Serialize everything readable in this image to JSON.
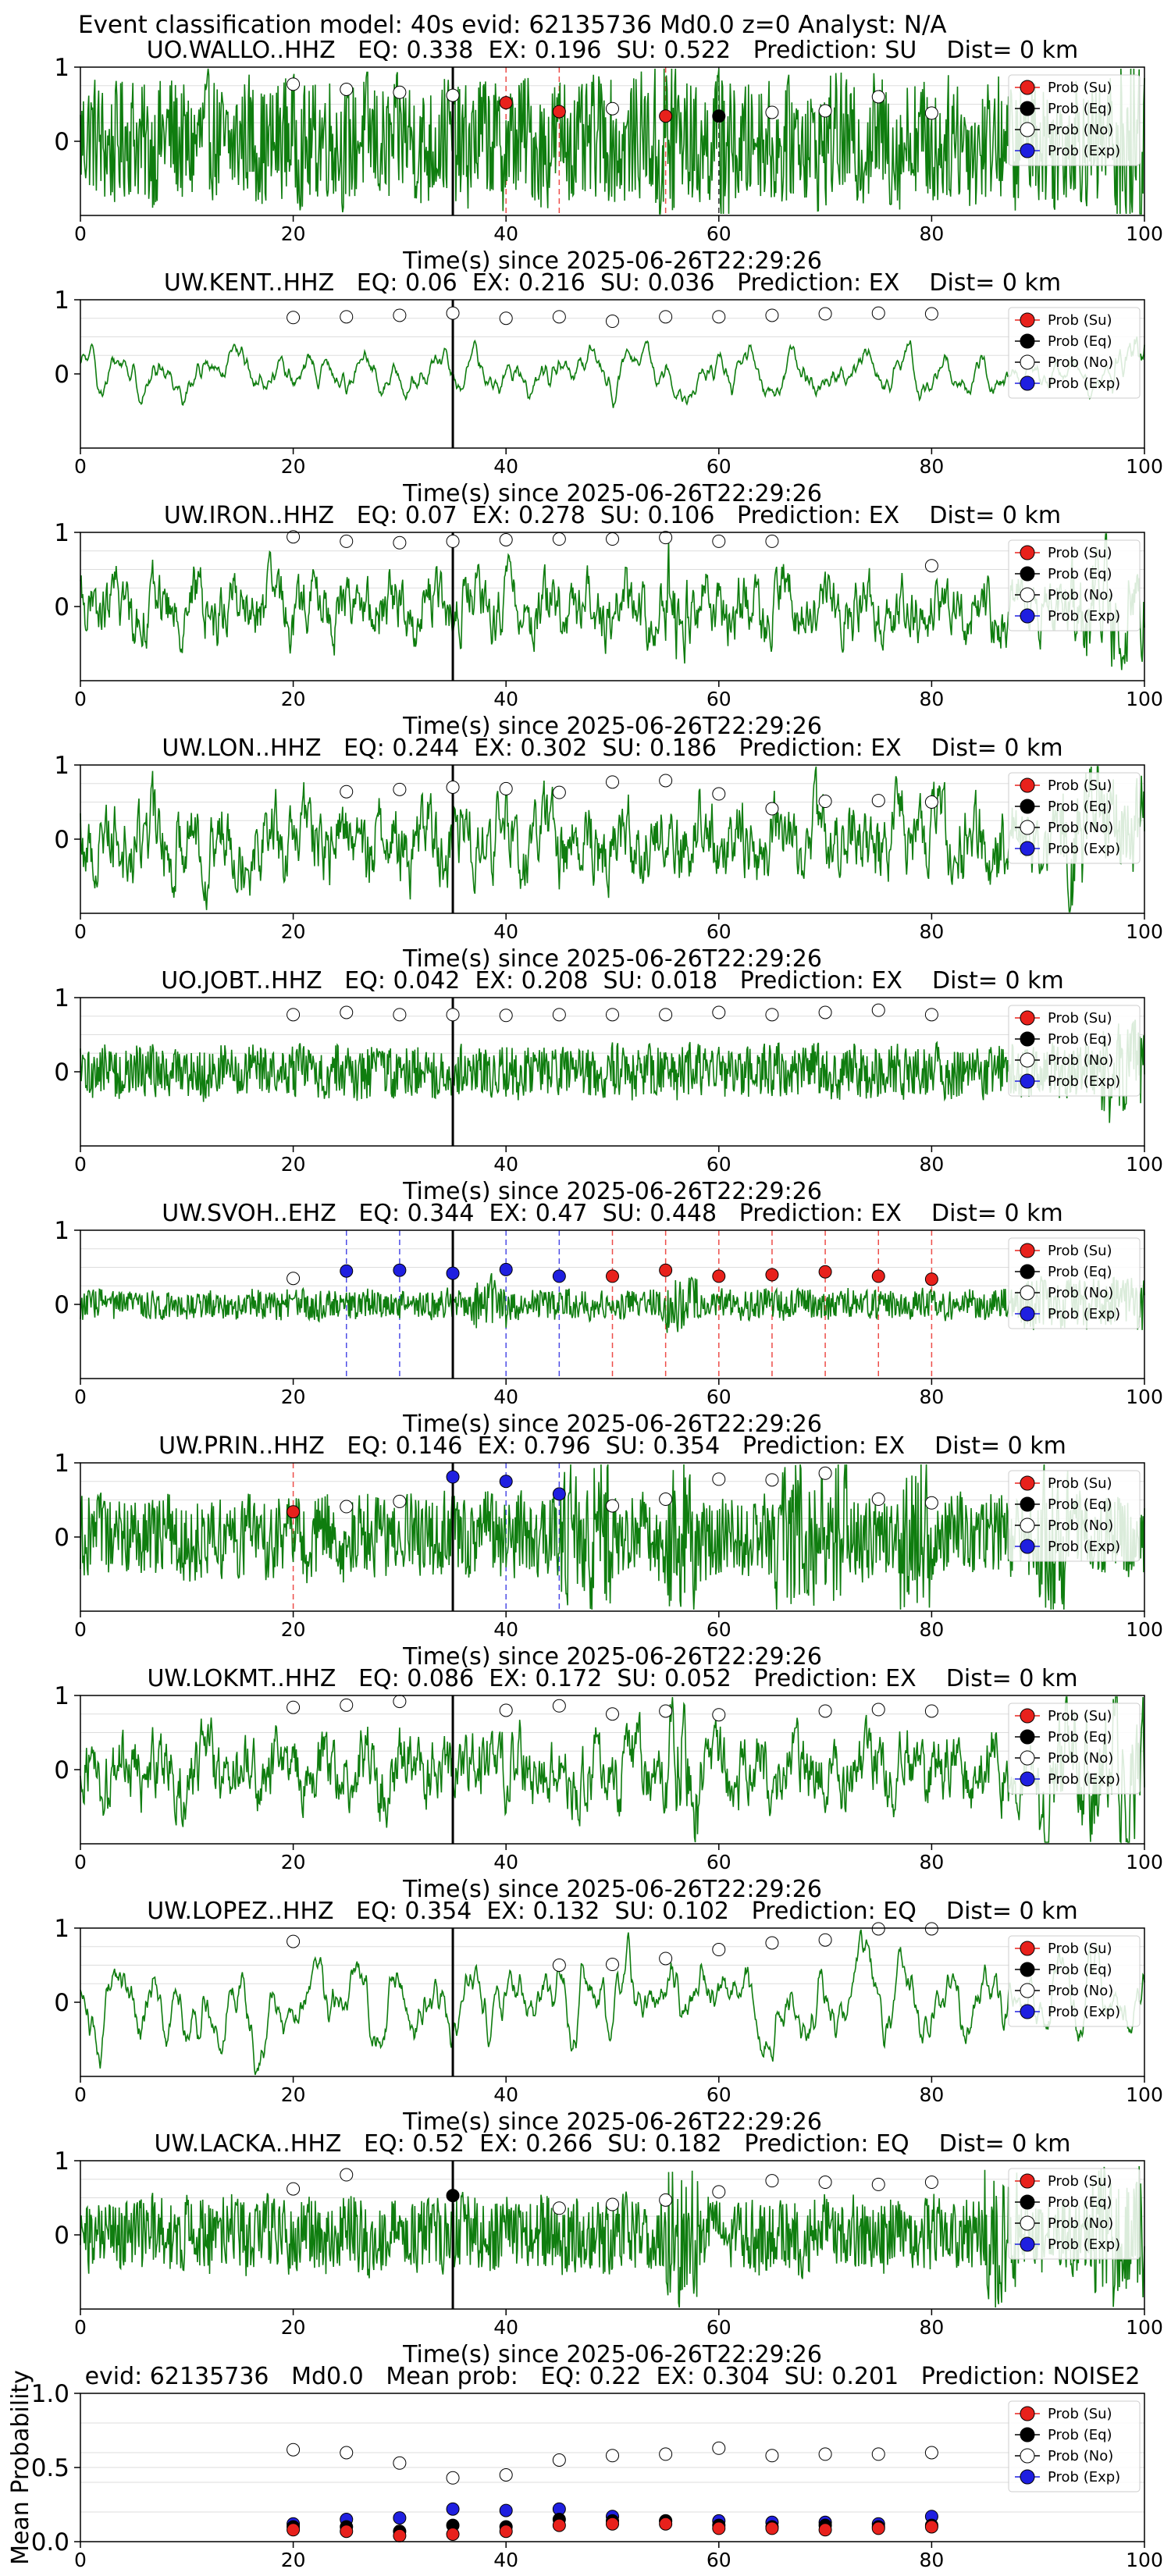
{
  "figure": {
    "suptitle": "Event classification model: 40s evid: 62135736 Md0.0 z=0 Analyst: N/A"
  },
  "legend_entries": [
    "Prob (Su)",
    "Prob (Eq)",
    "Prob (No)",
    "Prob (Exp)"
  ],
  "colors": {
    "su": "#e8211c",
    "eq": "#000000",
    "no": "#ffffff",
    "exp": "#1f1fe0",
    "waveform": "#0f7d0f",
    "pick_line": "#000000",
    "grid": "#dddddd"
  },
  "chart_data": [
    {
      "type": "line",
      "title": "UO.WALLO..HHZ   EQ: 0.338  EX: 0.196  SU: 0.522   Prediction: SU    Dist= 0 km",
      "xlabel": "Time(s) since 2025-06-26T22:29:26",
      "xlim": [
        0,
        100
      ],
      "ylim": [
        -1,
        1
      ],
      "xticks": [
        "0",
        "20",
        "40",
        "60",
        "80",
        "100"
      ],
      "yticks": [
        "0",
        "1"
      ],
      "pick_time": 35,
      "amplitude": 0.75,
      "style": "noisy",
      "bursts": [
        [
          54,
          56
        ],
        [
          60,
          61
        ],
        [
          97,
          100
        ]
      ],
      "points": [
        {
          "x": 20,
          "y": 0.77,
          "cls": "no"
        },
        {
          "x": 25,
          "y": 0.7,
          "cls": "no"
        },
        {
          "x": 30,
          "y": 0.66,
          "cls": "no"
        },
        {
          "x": 35,
          "y": 0.62,
          "cls": "no"
        },
        {
          "x": 40,
          "y": 0.52,
          "cls": "su"
        },
        {
          "x": 45,
          "y": 0.4,
          "cls": "su"
        },
        {
          "x": 50,
          "y": 0.44,
          "cls": "no"
        },
        {
          "x": 55,
          "y": 0.34,
          "cls": "su"
        },
        {
          "x": 60,
          "y": 0.34,
          "cls": "eq"
        },
        {
          "x": 65,
          "y": 0.39,
          "cls": "no"
        },
        {
          "x": 70,
          "y": 0.41,
          "cls": "no"
        },
        {
          "x": 75,
          "y": 0.6,
          "cls": "no"
        },
        {
          "x": 80,
          "y": 0.38,
          "cls": "no"
        }
      ]
    },
    {
      "type": "line",
      "title": "UW.KENT..HHZ   EQ: 0.06  EX: 0.216  SU: 0.036   Prediction: EX    Dist= 0 km",
      "xlabel": "Time(s) since 2025-06-26T22:29:26",
      "xlim": [
        0,
        100
      ],
      "ylim": [
        -1,
        1
      ],
      "xticks": [
        "0",
        "20",
        "40",
        "60",
        "80",
        "100"
      ],
      "yticks": [
        "0",
        "1"
      ],
      "pick_time": 35,
      "amplitude": 0.35,
      "style": "smooth",
      "bursts": [
        [
          97,
          100
        ]
      ],
      "points": [
        {
          "x": 20,
          "y": 0.76,
          "cls": "no"
        },
        {
          "x": 25,
          "y": 0.77,
          "cls": "no"
        },
        {
          "x": 30,
          "y": 0.79,
          "cls": "no"
        },
        {
          "x": 35,
          "y": 0.82,
          "cls": "no"
        },
        {
          "x": 40,
          "y": 0.75,
          "cls": "no"
        },
        {
          "x": 45,
          "y": 0.77,
          "cls": "no"
        },
        {
          "x": 50,
          "y": 0.71,
          "cls": "no"
        },
        {
          "x": 55,
          "y": 0.77,
          "cls": "no"
        },
        {
          "x": 60,
          "y": 0.77,
          "cls": "no"
        },
        {
          "x": 65,
          "y": 0.79,
          "cls": "no"
        },
        {
          "x": 70,
          "y": 0.81,
          "cls": "no"
        },
        {
          "x": 75,
          "y": 0.82,
          "cls": "no"
        },
        {
          "x": 80,
          "y": 0.81,
          "cls": "no"
        }
      ]
    },
    {
      "type": "line",
      "title": "UW.IRON..HHZ   EQ: 0.07  EX: 0.278  SU: 0.106   Prediction: EX    Dist= 0 km",
      "xlabel": "Time(s) since 2025-06-26T22:29:26",
      "xlim": [
        0,
        100
      ],
      "ylim": [
        -1,
        1
      ],
      "xticks": [
        "0",
        "20",
        "40",
        "60",
        "80",
        "100"
      ],
      "yticks": [
        "0",
        "1"
      ],
      "pick_time": 35,
      "amplitude": 0.45,
      "style": "medium",
      "bursts": [
        [
          55,
          57
        ],
        [
          93,
          100
        ]
      ],
      "points": [
        {
          "x": 20,
          "y": 0.94,
          "cls": "no"
        },
        {
          "x": 25,
          "y": 0.88,
          "cls": "no"
        },
        {
          "x": 30,
          "y": 0.86,
          "cls": "no"
        },
        {
          "x": 35,
          "y": 0.88,
          "cls": "no"
        },
        {
          "x": 40,
          "y": 0.9,
          "cls": "no"
        },
        {
          "x": 45,
          "y": 0.91,
          "cls": "no"
        },
        {
          "x": 50,
          "y": 0.91,
          "cls": "no"
        },
        {
          "x": 55,
          "y": 0.93,
          "cls": "no"
        },
        {
          "x": 60,
          "y": 0.88,
          "cls": "no"
        },
        {
          "x": 65,
          "y": 0.88,
          "cls": "no"
        },
        {
          "x": 80,
          "y": 0.55,
          "cls": "no"
        }
      ]
    },
    {
      "type": "line",
      "title": "UW.LON..HHZ   EQ: 0.244  EX: 0.302  SU: 0.186   Prediction: EX    Dist= 0 km",
      "xlabel": "Time(s) since 2025-06-26T22:29:26",
      "xlim": [
        0,
        100
      ],
      "ylim": [
        -1,
        1
      ],
      "xticks": [
        "0",
        "20",
        "40",
        "60",
        "80",
        "100"
      ],
      "yticks": [
        "0",
        "1"
      ],
      "pick_time": 35,
      "amplitude": 0.6,
      "style": "medium",
      "bursts": [
        [
          92,
          100
        ]
      ],
      "points": [
        {
          "x": 25,
          "y": 0.64,
          "cls": "no"
        },
        {
          "x": 30,
          "y": 0.67,
          "cls": "no"
        },
        {
          "x": 35,
          "y": 0.7,
          "cls": "no"
        },
        {
          "x": 40,
          "y": 0.68,
          "cls": "no"
        },
        {
          "x": 45,
          "y": 0.63,
          "cls": "no"
        },
        {
          "x": 50,
          "y": 0.77,
          "cls": "no"
        },
        {
          "x": 55,
          "y": 0.79,
          "cls": "no"
        },
        {
          "x": 60,
          "y": 0.61,
          "cls": "no"
        },
        {
          "x": 65,
          "y": 0.41,
          "cls": "no"
        },
        {
          "x": 70,
          "y": 0.51,
          "cls": "no"
        },
        {
          "x": 75,
          "y": 0.52,
          "cls": "no"
        },
        {
          "x": 80,
          "y": 0.5,
          "cls": "no"
        }
      ]
    },
    {
      "type": "line",
      "title": "UO.JOBT..HHZ   EQ: 0.042  EX: 0.208  SU: 0.018   Prediction: EX    Dist= 0 km",
      "xlabel": "Time(s) since 2025-06-26T22:29:26",
      "xlim": [
        0,
        100
      ],
      "ylim": [
        -1,
        1
      ],
      "xticks": [
        "0",
        "20",
        "40",
        "60",
        "80",
        "100"
      ],
      "yticks": [
        "0",
        "1"
      ],
      "pick_time": 35,
      "amplitude": 0.32,
      "style": "noisy",
      "bursts": [
        [
          96,
          100
        ]
      ],
      "points": [
        {
          "x": 20,
          "y": 0.77,
          "cls": "no"
        },
        {
          "x": 25,
          "y": 0.8,
          "cls": "no"
        },
        {
          "x": 30,
          "y": 0.77,
          "cls": "no"
        },
        {
          "x": 35,
          "y": 0.77,
          "cls": "no"
        },
        {
          "x": 40,
          "y": 0.76,
          "cls": "no"
        },
        {
          "x": 45,
          "y": 0.77,
          "cls": "no"
        },
        {
          "x": 50,
          "y": 0.77,
          "cls": "no"
        },
        {
          "x": 55,
          "y": 0.77,
          "cls": "no"
        },
        {
          "x": 60,
          "y": 0.8,
          "cls": "no"
        },
        {
          "x": 65,
          "y": 0.77,
          "cls": "no"
        },
        {
          "x": 70,
          "y": 0.8,
          "cls": "no"
        },
        {
          "x": 75,
          "y": 0.83,
          "cls": "no"
        },
        {
          "x": 80,
          "y": 0.77,
          "cls": "no"
        }
      ]
    },
    {
      "type": "line",
      "title": "UW.SVOH..EHZ   EQ: 0.344  EX: 0.47  SU: 0.448   Prediction: EX    Dist= 0 km",
      "xlabel": "Time(s) since 2025-06-26T22:29:26",
      "xlim": [
        0,
        100
      ],
      "ylim": [
        -1,
        1
      ],
      "xticks": [
        "0",
        "20",
        "40",
        "60",
        "80",
        "100"
      ],
      "yticks": [
        "0",
        "1"
      ],
      "pick_time": 35,
      "amplitude": 0.18,
      "style": "noisy",
      "bursts": [
        [
          37,
          40
        ],
        [
          55,
          58
        ],
        [
          88,
          100
        ]
      ],
      "points": [
        {
          "x": 20,
          "y": 0.35,
          "cls": "no"
        },
        {
          "x": 25,
          "y": 0.45,
          "cls": "exp"
        },
        {
          "x": 30,
          "y": 0.46,
          "cls": "exp"
        },
        {
          "x": 35,
          "y": 0.42,
          "cls": "exp"
        },
        {
          "x": 40,
          "y": 0.47,
          "cls": "exp"
        },
        {
          "x": 45,
          "y": 0.38,
          "cls": "exp"
        },
        {
          "x": 50,
          "y": 0.38,
          "cls": "su"
        },
        {
          "x": 55,
          "y": 0.46,
          "cls": "su"
        },
        {
          "x": 60,
          "y": 0.38,
          "cls": "su"
        },
        {
          "x": 65,
          "y": 0.4,
          "cls": "su"
        },
        {
          "x": 70,
          "y": 0.44,
          "cls": "su"
        },
        {
          "x": 75,
          "y": 0.38,
          "cls": "su"
        },
        {
          "x": 80,
          "y": 0.34,
          "cls": "su"
        }
      ]
    },
    {
      "type": "line",
      "title": "UW.PRIN..HHZ   EQ: 0.146  EX: 0.796  SU: 0.354   Prediction: EX    Dist= 0 km",
      "xlabel": "Time(s) since 2025-06-26T22:29:26",
      "xlim": [
        0,
        100
      ],
      "ylim": [
        -1,
        1
      ],
      "xticks": [
        "0",
        "20",
        "40",
        "60",
        "80",
        "100"
      ],
      "yticks": [
        "0",
        "1"
      ],
      "pick_time": 35,
      "amplitude": 0.5,
      "style": "noisy",
      "bursts": [
        [
          45,
          50
        ],
        [
          55,
          58
        ],
        [
          65,
          72
        ],
        [
          77,
          80
        ],
        [
          90,
          93
        ]
      ],
      "points": [
        {
          "x": 20,
          "y": 0.34,
          "cls": "su"
        },
        {
          "x": 25,
          "y": 0.41,
          "cls": "no"
        },
        {
          "x": 30,
          "y": 0.48,
          "cls": "no"
        },
        {
          "x": 35,
          "y": 0.81,
          "cls": "exp"
        },
        {
          "x": 40,
          "y": 0.75,
          "cls": "exp"
        },
        {
          "x": 45,
          "y": 0.58,
          "cls": "exp"
        },
        {
          "x": 50,
          "y": 0.42,
          "cls": "no"
        },
        {
          "x": 55,
          "y": 0.51,
          "cls": "no"
        },
        {
          "x": 60,
          "y": 0.78,
          "cls": "no"
        },
        {
          "x": 65,
          "y": 0.77,
          "cls": "no"
        },
        {
          "x": 70,
          "y": 0.86,
          "cls": "no"
        },
        {
          "x": 75,
          "y": 0.51,
          "cls": "no"
        },
        {
          "x": 80,
          "y": 0.46,
          "cls": "no"
        }
      ]
    },
    {
      "type": "line",
      "title": "UW.LOKMT..HHZ   EQ: 0.086  EX: 0.172  SU: 0.052   Prediction: EX    Dist= 0 km",
      "xlabel": "Time(s) since 2025-06-26T22:29:26",
      "xlim": [
        0,
        100
      ],
      "ylim": [
        -1,
        1
      ],
      "xticks": [
        "0",
        "20",
        "40",
        "60",
        "80",
        "100"
      ],
      "yticks": [
        "0",
        "1"
      ],
      "pick_time": 35,
      "amplitude": 0.55,
      "style": "medium",
      "bursts": [
        [
          55,
          58
        ],
        [
          90,
          100
        ]
      ],
      "points": [
        {
          "x": 20,
          "y": 0.84,
          "cls": "no"
        },
        {
          "x": 25,
          "y": 0.87,
          "cls": "no"
        },
        {
          "x": 30,
          "y": 0.92,
          "cls": "no"
        },
        {
          "x": 40,
          "y": 0.8,
          "cls": "no"
        },
        {
          "x": 45,
          "y": 0.86,
          "cls": "no"
        },
        {
          "x": 50,
          "y": 0.75,
          "cls": "no"
        },
        {
          "x": 55,
          "y": 0.79,
          "cls": "no"
        },
        {
          "x": 60,
          "y": 0.74,
          "cls": "no"
        },
        {
          "x": 70,
          "y": 0.79,
          "cls": "no"
        },
        {
          "x": 75,
          "y": 0.81,
          "cls": "no"
        },
        {
          "x": 80,
          "y": 0.79,
          "cls": "no"
        }
      ]
    },
    {
      "type": "line",
      "title": "UW.LOPEZ..HHZ   EQ: 0.354  EX: 0.132  SU: 0.102   Prediction: EQ    Dist= 0 km",
      "xlabel": "Time(s) since 2025-06-26T22:29:26",
      "xlim": [
        0,
        100
      ],
      "ylim": [
        -1,
        1
      ],
      "xticks": [
        "0",
        "20",
        "40",
        "60",
        "80",
        "100"
      ],
      "yticks": [
        "0",
        "1"
      ],
      "pick_time": 35,
      "amplitude": 0.65,
      "style": "smooth",
      "bursts": [],
      "points": [
        {
          "x": 20,
          "y": 0.82,
          "cls": "no"
        },
        {
          "x": 45,
          "y": 0.5,
          "cls": "no"
        },
        {
          "x": 50,
          "y": 0.51,
          "cls": "no"
        },
        {
          "x": 55,
          "y": 0.59,
          "cls": "no"
        },
        {
          "x": 60,
          "y": 0.71,
          "cls": "no"
        },
        {
          "x": 65,
          "y": 0.8,
          "cls": "no"
        },
        {
          "x": 70,
          "y": 0.84,
          "cls": "no"
        },
        {
          "x": 75,
          "y": 0.99,
          "cls": "no"
        },
        {
          "x": 80,
          "y": 0.99,
          "cls": "no"
        }
      ]
    },
    {
      "type": "line",
      "title": "UW.LACKA..HHZ   EQ: 0.52  EX: 0.266  SU: 0.182   Prediction: EQ    Dist= 0 km",
      "xlabel": "Time(s) since 2025-06-26T22:29:26",
      "xlim": [
        0,
        100
      ],
      "ylim": [
        -1,
        1
      ],
      "xticks": [
        "0",
        "20",
        "40",
        "60",
        "80",
        "100"
      ],
      "yticks": [
        "0",
        "1"
      ],
      "pick_time": 35,
      "amplitude": 0.45,
      "style": "noisy",
      "bursts": [
        [
          55,
          58
        ],
        [
          85,
          88
        ],
        [
          95,
          100
        ]
      ],
      "points": [
        {
          "x": 20,
          "y": 0.62,
          "cls": "no"
        },
        {
          "x": 25,
          "y": 0.81,
          "cls": "no"
        },
        {
          "x": 35,
          "y": 0.53,
          "cls": "eq"
        },
        {
          "x": 45,
          "y": 0.36,
          "cls": "no"
        },
        {
          "x": 50,
          "y": 0.41,
          "cls": "no"
        },
        {
          "x": 55,
          "y": 0.47,
          "cls": "no"
        },
        {
          "x": 60,
          "y": 0.58,
          "cls": "no"
        },
        {
          "x": 65,
          "y": 0.73,
          "cls": "no"
        },
        {
          "x": 70,
          "y": 0.71,
          "cls": "no"
        },
        {
          "x": 75,
          "y": 0.68,
          "cls": "no"
        },
        {
          "x": 80,
          "y": 0.71,
          "cls": "no"
        }
      ]
    },
    {
      "type": "scatter",
      "title": "evid: 62135736   Md0.0   Mean prob:   EQ: 0.22  EX: 0.304  SU: 0.201   Prediction: NOISE2",
      "ylabel": "Mean Probability",
      "xlim": [
        0,
        100
      ],
      "ylim": [
        0,
        1
      ],
      "xticks": [
        "0",
        "20",
        "40",
        "60",
        "80",
        "100"
      ],
      "yticks": [
        "0.0",
        "0.5",
        "1.0"
      ],
      "series": [
        {
          "name": "Prob (No)",
          "cls": "no",
          "x": [
            20,
            25,
            30,
            35,
            40,
            45,
            50,
            55,
            60,
            65,
            70,
            75,
            80
          ],
          "values": [
            0.62,
            0.6,
            0.53,
            0.43,
            0.45,
            0.55,
            0.58,
            0.59,
            0.63,
            0.58,
            0.59,
            0.59,
            0.6
          ]
        },
        {
          "name": "Prob (Exp)",
          "cls": "exp",
          "x": [
            20,
            25,
            30,
            35,
            40,
            45,
            50,
            55,
            60,
            65,
            70,
            75,
            80
          ],
          "values": [
            0.12,
            0.15,
            0.16,
            0.22,
            0.21,
            0.22,
            0.17,
            0.14,
            0.14,
            0.13,
            0.13,
            0.12,
            0.17
          ]
        },
        {
          "name": "Prob (Eq)",
          "cls": "eq",
          "x": [
            20,
            25,
            30,
            35,
            40,
            45,
            50,
            55,
            60,
            65,
            70,
            75,
            80
          ],
          "values": [
            0.1,
            0.1,
            0.07,
            0.11,
            0.1,
            0.15,
            0.14,
            0.14,
            0.11,
            0.1,
            0.11,
            0.1,
            0.11
          ]
        },
        {
          "name": "Prob (Su)",
          "cls": "su",
          "x": [
            20,
            25,
            30,
            35,
            40,
            45,
            50,
            55,
            60,
            65,
            70,
            75,
            80
          ],
          "values": [
            0.08,
            0.07,
            0.04,
            0.05,
            0.07,
            0.11,
            0.12,
            0.12,
            0.09,
            0.09,
            0.08,
            0.09,
            0.1
          ]
        }
      ]
    }
  ]
}
